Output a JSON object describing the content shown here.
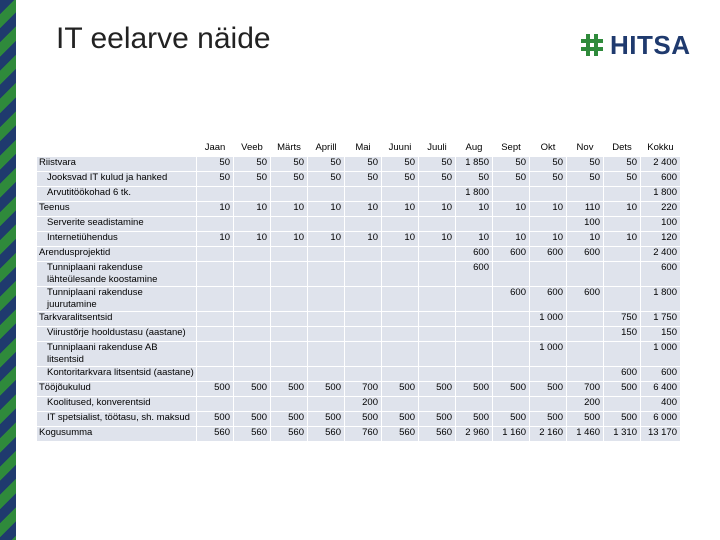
{
  "title": "IT eelarve näide",
  "logo": {
    "text": "HITSA",
    "color": "#1f3a6e",
    "accent": "#2f8a3b"
  },
  "columns": [
    "Jaan",
    "Veeb",
    "Märts",
    "Aprill",
    "Mai",
    "Juuni",
    "Juuli",
    "Aug",
    "Sept",
    "Okt",
    "Nov",
    "Dets",
    "Kokku"
  ],
  "rows": [
    {
      "label": "Riistvara",
      "indent": false,
      "cells": [
        "50",
        "50",
        "50",
        "50",
        "50",
        "50",
        "50",
        "1 850",
        "50",
        "50",
        "50",
        "50",
        "2 400"
      ]
    },
    {
      "label": "Jooksvad IT kulud ja hanked",
      "indent": true,
      "cells": [
        "50",
        "50",
        "50",
        "50",
        "50",
        "50",
        "50",
        "50",
        "50",
        "50",
        "50",
        "50",
        "600"
      ]
    },
    {
      "label": "Arvutitöökohad 6 tk.",
      "indent": true,
      "cells": [
        "",
        "",
        "",
        "",
        "",
        "",
        "",
        "1 800",
        "",
        "",
        "",
        "",
        "1 800"
      ]
    },
    {
      "label": "Teenus",
      "indent": false,
      "cells": [
        "10",
        "10",
        "10",
        "10",
        "10",
        "10",
        "10",
        "10",
        "10",
        "10",
        "110",
        "10",
        "220"
      ]
    },
    {
      "label": "Serverite seadistamine",
      "indent": true,
      "cells": [
        "",
        "",
        "",
        "",
        "",
        "",
        "",
        "",
        "",
        "",
        "100",
        "",
        "100"
      ]
    },
    {
      "label": "Internetiühendus",
      "indent": true,
      "cells": [
        "10",
        "10",
        "10",
        "10",
        "10",
        "10",
        "10",
        "10",
        "10",
        "10",
        "10",
        "10",
        "120"
      ]
    },
    {
      "label": "Arendusprojektid",
      "indent": false,
      "cells": [
        "",
        "",
        "",
        "",
        "",
        "",
        "",
        "600",
        "600",
        "600",
        "600",
        "",
        "2 400"
      ]
    },
    {
      "label": "Tunniplaani rakenduse lähteülesande koostamine",
      "indent": true,
      "tall": true,
      "cells": [
        "",
        "",
        "",
        "",
        "",
        "",
        "",
        "600",
        "",
        "",
        "",
        "",
        "600"
      ]
    },
    {
      "label": "Tunniplaani rakenduse juurutamine",
      "indent": true,
      "tall": true,
      "cells": [
        "",
        "",
        "",
        "",
        "",
        "",
        "",
        "",
        "600",
        "600",
        "600",
        "",
        "1 800"
      ]
    },
    {
      "label": "Tarkvaralitsentsid",
      "indent": false,
      "cells": [
        "",
        "",
        "",
        "",
        "",
        "",
        "",
        "",
        "",
        "1 000",
        "",
        "750",
        "1 750"
      ]
    },
    {
      "label": "Viirustõrje hooldustasu (aastane)",
      "indent": true,
      "tall": true,
      "cells": [
        "",
        "",
        "",
        "",
        "",
        "",
        "",
        "",
        "",
        "",
        "",
        "150",
        "150"
      ]
    },
    {
      "label": "Tunniplaani rakenduse AB litsentsid",
      "indent": true,
      "tall": true,
      "cells": [
        "",
        "",
        "",
        "",
        "",
        "",
        "",
        "",
        "",
        "1 000",
        "",
        "",
        "1 000"
      ]
    },
    {
      "label": "Kontoritarkvara litsentsid (aastane)",
      "indent": true,
      "tall": true,
      "cells": [
        "",
        "",
        "",
        "",
        "",
        "",
        "",
        "",
        "",
        "",
        "",
        "600",
        "600"
      ]
    },
    {
      "label": "Tööjõukulud",
      "indent": false,
      "cells": [
        "500",
        "500",
        "500",
        "500",
        "700",
        "500",
        "500",
        "500",
        "500",
        "500",
        "700",
        "500",
        "6 400"
      ]
    },
    {
      "label": "Koolitused, konverentsid",
      "indent": true,
      "cells": [
        "",
        "",
        "",
        "",
        "200",
        "",
        "",
        "",
        "",
        "",
        "200",
        "",
        "400"
      ]
    },
    {
      "label": "IT spetsialist, töötasu, sh. maksud",
      "indent": true,
      "tall": true,
      "cells": [
        "500",
        "500",
        "500",
        "500",
        "500",
        "500",
        "500",
        "500",
        "500",
        "500",
        "500",
        "500",
        "6 000"
      ]
    },
    {
      "label": "Kogusumma",
      "indent": false,
      "cells": [
        "560",
        "560",
        "560",
        "560",
        "760",
        "560",
        "560",
        "2 960",
        "1 160",
        "2 160",
        "1 460",
        "1 310",
        "13 170"
      ]
    }
  ]
}
